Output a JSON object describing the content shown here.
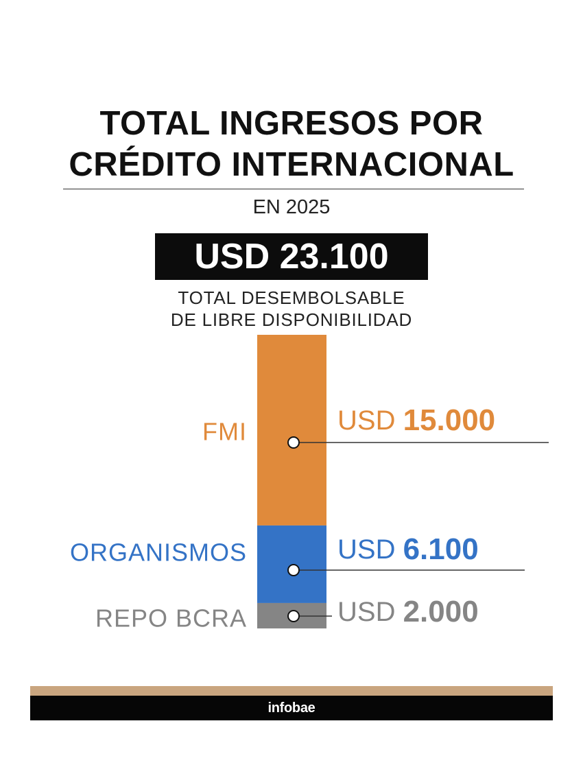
{
  "header": {
    "title_line1": "TOTAL INGRESOS POR",
    "title_line2": "CRÉDITO INTERNACIONAL",
    "subtitle": "EN 2025",
    "total_value": "USD 23.100",
    "total_caption_line1": "TOTAL DESEMBOLSABLE",
    "total_caption_line2": "DE LIBRE DISPONIBILIDAD"
  },
  "chart_data": {
    "type": "bar",
    "stacked": true,
    "unit": "USD",
    "total": 23100,
    "categories": [
      "FMI",
      "ORGANISMOS",
      "REPO BCRA"
    ],
    "values": [
      15000,
      6100,
      2000
    ],
    "value_labels": [
      {
        "currency": "USD",
        "amount": "15.000"
      },
      {
        "currency": "USD",
        "amount": "6.100"
      },
      {
        "currency": "USD",
        "amount": "2.000"
      }
    ],
    "colors": [
      "#e08a3b",
      "#3473c6",
      "#858585"
    ],
    "grid": false
  },
  "footer": {
    "brand": "infobae",
    "stripe_color": "#c9a57f"
  }
}
